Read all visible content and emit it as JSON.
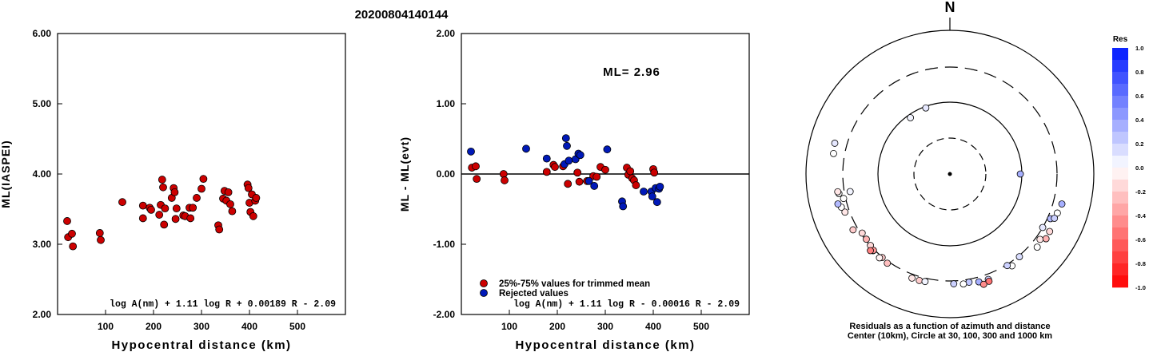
{
  "title": "20200804140144",
  "colors": {
    "accepted": "#cc0000",
    "rejected": "#0019b8"
  },
  "chart_data": [
    {
      "type": "scatter",
      "xlabel": "Hypocentral distance (km)",
      "ylabel": "ML(IASPEI)",
      "xlim": [
        0,
        600
      ],
      "ylim": [
        2.0,
        6.0
      ],
      "x_ticks": [
        "100",
        "200",
        "300",
        "400",
        "500"
      ],
      "y_ticks": [
        "2.00",
        "3.00",
        "4.00",
        "5.00",
        "6.00"
      ],
      "formula": "log A(nm) + 1.11 log R + 0.00189 R - 2.09",
      "points": [
        [
          20,
          3.33
        ],
        [
          22,
          3.1
        ],
        [
          30,
          3.15
        ],
        [
          32,
          2.97
        ],
        [
          88,
          3.16
        ],
        [
          90,
          3.06
        ],
        [
          135,
          3.6
        ],
        [
          178,
          3.55
        ],
        [
          178,
          3.37
        ],
        [
          192,
          3.52
        ],
        [
          195,
          3.49
        ],
        [
          212,
          3.42
        ],
        [
          215,
          3.56
        ],
        [
          218,
          3.92
        ],
        [
          220,
          3.81
        ],
        [
          222,
          3.28
        ],
        [
          224,
          3.51
        ],
        [
          238,
          3.66
        ],
        [
          242,
          3.8
        ],
        [
          244,
          3.74
        ],
        [
          246,
          3.36
        ],
        [
          248,
          3.51
        ],
        [
          262,
          3.41
        ],
        [
          266,
          3.4
        ],
        [
          275,
          3.52
        ],
        [
          277,
          3.37
        ],
        [
          282,
          3.52
        ],
        [
          290,
          3.66
        ],
        [
          300,
          3.79
        ],
        [
          304,
          3.93
        ],
        [
          335,
          3.27
        ],
        [
          337,
          3.21
        ],
        [
          345,
          3.65
        ],
        [
          348,
          3.76
        ],
        [
          352,
          3.62
        ],
        [
          356,
          3.74
        ],
        [
          360,
          3.57
        ],
        [
          364,
          3.47
        ],
        [
          396,
          3.85
        ],
        [
          398,
          3.8
        ],
        [
          400,
          3.59
        ],
        [
          402,
          3.46
        ],
        [
          405,
          3.71
        ],
        [
          408,
          3.4
        ],
        [
          412,
          3.62
        ],
        [
          414,
          3.66
        ]
      ]
    },
    {
      "type": "scatter",
      "xlabel": "Hypocentral distance (km)",
      "ylabel": "ML - ML(evt)",
      "xlim": [
        0,
        600
      ],
      "ylim": [
        -2.0,
        2.0
      ],
      "x_ticks": [
        "100",
        "200",
        "300",
        "400",
        "500"
      ],
      "y_ticks": [
        "-2.00",
        "-1.00",
        "0.00",
        "1.00",
        "2.00"
      ],
      "annotation": "ML= 2.96",
      "formula": "log A(nm) + 1.11 log R - 0.00016 R - 2.09",
      "legend": {
        "position": "bottom-left",
        "entries": [
          "25%-75% values for trimmed mean",
          "Rejected values"
        ]
      },
      "series": [
        {
          "name": "25%-75% values for trimmed mean",
          "points": [
            [
              22,
              0.09
            ],
            [
              30,
              0.11
            ],
            [
              32,
              -0.07
            ],
            [
              88,
              0.0
            ],
            [
              90,
              -0.09
            ],
            [
              178,
              0.03
            ],
            [
              192,
              0.13
            ],
            [
              195,
              0.1
            ],
            [
              212,
              0.11
            ],
            [
              222,
              -0.14
            ],
            [
              242,
              0.02
            ],
            [
              246,
              -0.11
            ],
            [
              262,
              -0.1
            ],
            [
              275,
              -0.03
            ],
            [
              282,
              -0.04
            ],
            [
              290,
              0.1
            ],
            [
              300,
              0.06
            ],
            [
              345,
              0.09
            ],
            [
              348,
              -0.01
            ],
            [
              352,
              0.04
            ],
            [
              356,
              -0.06
            ],
            [
              360,
              -0.09
            ],
            [
              364,
              -0.16
            ],
            [
              400,
              0.07
            ],
            [
              402,
              0.02
            ]
          ]
        },
        {
          "name": "Rejected values",
          "points": [
            [
              20,
              0.32
            ],
            [
              135,
              0.36
            ],
            [
              178,
              0.22
            ],
            [
              215,
              0.14
            ],
            [
              218,
              0.51
            ],
            [
              220,
              0.4
            ],
            [
              224,
              0.19
            ],
            [
              238,
              0.21
            ],
            [
              244,
              0.29
            ],
            [
              248,
              0.27
            ],
            [
              266,
              -0.1
            ],
            [
              277,
              -0.17
            ],
            [
              304,
              0.35
            ],
            [
              335,
              -0.39
            ],
            [
              337,
              -0.46
            ],
            [
              380,
              -0.25
            ],
            [
              396,
              -0.25
            ],
            [
              398,
              -0.32
            ],
            [
              405,
              -0.2
            ],
            [
              408,
              -0.4
            ],
            [
              412,
              -0.21
            ],
            [
              414,
              -0.18
            ]
          ]
        }
      ]
    },
    {
      "type": "polar_scatter",
      "north_label": "N",
      "caption_line1": "Residuals as a function of azimuth and distance",
      "caption_line2": "Center (10km), Circle at 30, 100, 300 and 1000 km",
      "colorbar": {
        "title": "Res",
        "ticks": [
          "1.0",
          "0.8",
          "0.6",
          "0.4",
          "0.2",
          "0.0",
          "-0.2",
          "-0.4",
          "-0.6",
          "-0.8",
          "-1.0"
        ]
      },
      "stations": [
        [
          -35,
          90,
          0.05
        ],
        [
          -20,
          95,
          0.1
        ],
        [
          90,
          95,
          0.35
        ],
        [
          -100,
          250,
          0.05
        ],
        [
          -103,
          320,
          0.0
        ],
        [
          -110,
          348,
          -0.1
        ],
        [
          -100,
          360,
          0.0
        ],
        [
          -99,
          370,
          -0.1
        ],
        [
          -107,
          370,
          0.0
        ],
        [
          -120,
          350,
          -0.2
        ],
        [
          -105,
          400,
          0.3
        ],
        [
          -80,
          430,
          0.0
        ],
        [
          -75,
          445,
          0.1
        ],
        [
          120,
          300,
          0.1
        ],
        [
          114,
          330,
          0.3
        ],
        [
          105,
          400,
          0.35
        ],
        [
          120,
          390,
          -0.15
        ],
        [
          110,
          380,
          0.0
        ],
        [
          113,
          370,
          0.2
        ],
        [
          126,
          345,
          -0.1
        ],
        [
          130,
          375,
          0.0
        ],
        [
          124,
          400,
          -0.3
        ],
        [
          146,
          340,
          0.0
        ],
        [
          140,
          310,
          0.15
        ],
        [
          148,
          310,
          0.2
        ],
        [
          160,
          355,
          0.2
        ],
        [
          165,
          350,
          0.35
        ],
        [
          170,
          330,
          0.25
        ],
        [
          173,
          340,
          0.0
        ],
        [
          178,
          330,
          0.2
        ],
        [
          196,
          340,
          -0.2
        ],
        [
          193,
          335,
          0.05
        ],
        [
          200,
          340,
          -0.1
        ],
        [
          215,
          320,
          -0.25
        ],
        [
          219,
          305,
          -0.2
        ],
        [
          220,
          325,
          -0.05
        ],
        [
          225,
          315,
          0.0
        ],
        [
          228,
          298,
          -0.15
        ],
        [
          232,
          290,
          -0.3
        ],
        [
          236,
          288,
          -0.15
        ],
        [
          225,
          310,
          -0.4
        ],
        [
          226,
          335,
          -0.5
        ],
        [
          160,
          380,
          -0.55
        ],
        [
          163,
          395,
          -0.45
        ]
      ]
    }
  ]
}
